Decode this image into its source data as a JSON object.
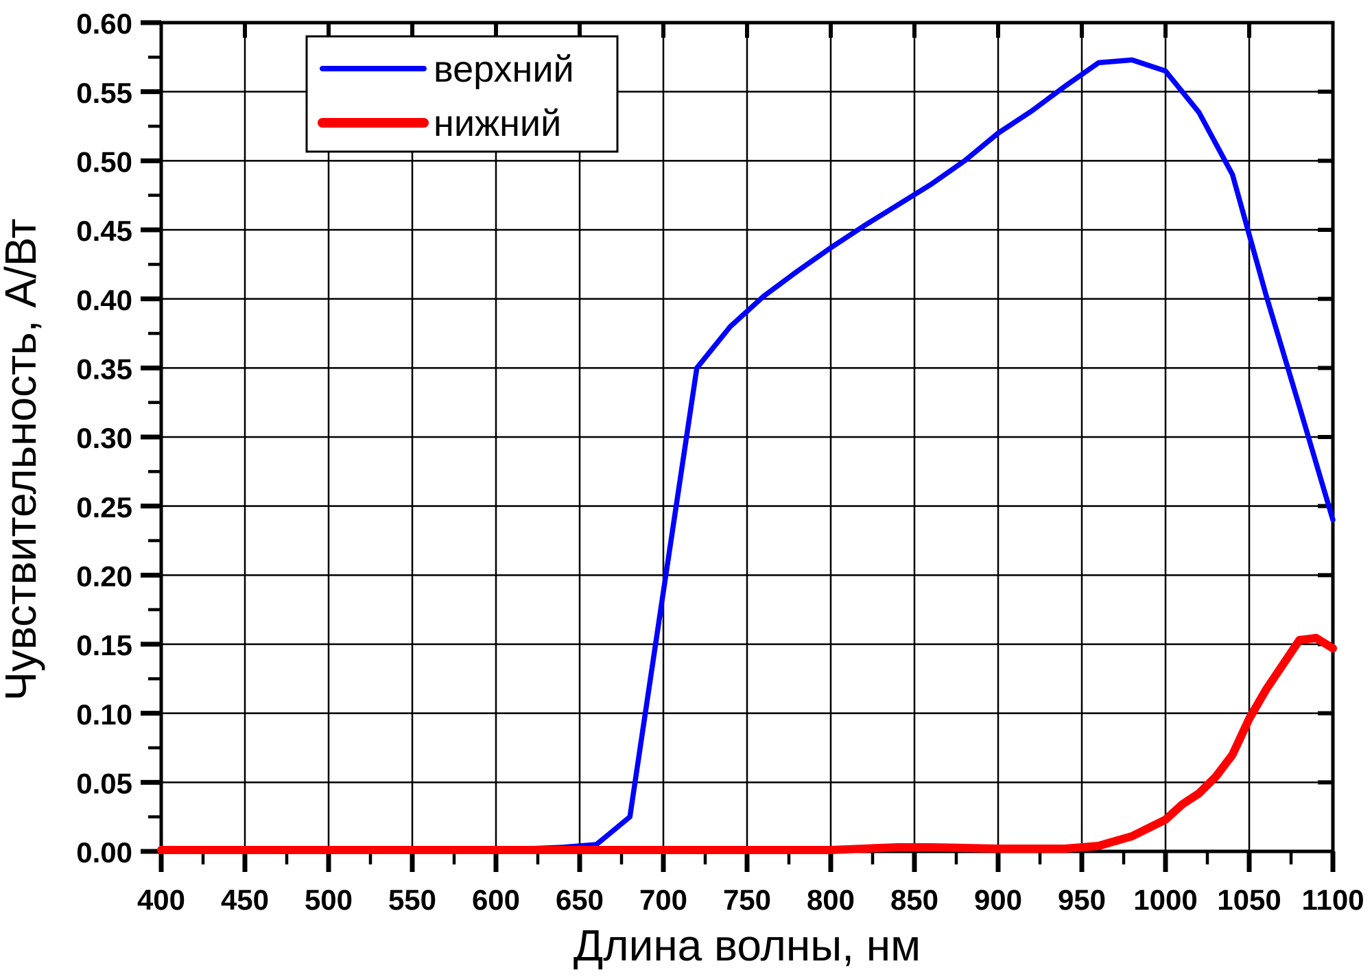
{
  "page": {
    "background": "#FFFFFF",
    "frame_color": "#000000",
    "grid_color": "#000000"
  },
  "chart_data": {
    "type": "line",
    "title": "",
    "xlabel": "Длина волны, нм",
    "ylabel": "Чувствительность, А/Вт",
    "xlim": [
      400,
      1100
    ],
    "ylim": [
      0.0,
      0.6
    ],
    "x_major_step": 50,
    "x_minor_step": 25,
    "y_major_step": 0.05,
    "y_minor_step": 0.025,
    "grid": true,
    "legend_position": "top-left-inside",
    "x_tick_labels": [
      "400",
      "450",
      "500",
      "550",
      "600",
      "650",
      "700",
      "750",
      "800",
      "850",
      "900",
      "950",
      "1000",
      "1050",
      "1100"
    ],
    "y_tick_labels": [
      "0.00",
      "0.05",
      "0.10",
      "0.15",
      "0.20",
      "0.25",
      "0.30",
      "0.35",
      "0.40",
      "0.45",
      "0.50",
      "0.55",
      "0.60"
    ],
    "series": [
      {
        "name": "верхний",
        "color": "#0000FF",
        "stroke_width": 7.5,
        "points": [
          [
            400,
            0.001
          ],
          [
            420,
            0.001
          ],
          [
            440,
            0.001
          ],
          [
            460,
            0.001
          ],
          [
            480,
            0.001
          ],
          [
            500,
            0.001
          ],
          [
            520,
            0.001
          ],
          [
            540,
            0.001
          ],
          [
            560,
            0.001
          ],
          [
            580,
            0.001
          ],
          [
            600,
            0.001
          ],
          [
            620,
            0.002
          ],
          [
            640,
            0.003
          ],
          [
            660,
            0.005
          ],
          [
            680,
            0.025
          ],
          [
            700,
            0.188
          ],
          [
            720,
            0.35
          ],
          [
            740,
            0.38
          ],
          [
            760,
            0.402
          ],
          [
            780,
            0.42
          ],
          [
            800,
            0.437
          ],
          [
            820,
            0.453
          ],
          [
            840,
            0.468
          ],
          [
            860,
            0.483
          ],
          [
            880,
            0.5
          ],
          [
            900,
            0.52
          ],
          [
            920,
            0.536
          ],
          [
            940,
            0.554
          ],
          [
            960,
            0.571
          ],
          [
            980,
            0.573
          ],
          [
            1000,
            0.565
          ],
          [
            1020,
            0.535
          ],
          [
            1040,
            0.49
          ],
          [
            1060,
            0.403
          ],
          [
            1080,
            0.322
          ],
          [
            1100,
            0.24
          ]
        ]
      },
      {
        "name": "нижний",
        "color": "#FF0000",
        "stroke_width": 12,
        "points": [
          [
            400,
            0.001
          ],
          [
            450,
            0.001
          ],
          [
            500,
            0.001
          ],
          [
            550,
            0.001
          ],
          [
            600,
            0.001
          ],
          [
            650,
            0.001
          ],
          [
            700,
            0.001
          ],
          [
            750,
            0.001
          ],
          [
            800,
            0.001
          ],
          [
            820,
            0.002
          ],
          [
            840,
            0.003
          ],
          [
            860,
            0.003
          ],
          [
            880,
            0.0025
          ],
          [
            900,
            0.002
          ],
          [
            920,
            0.002
          ],
          [
            940,
            0.002
          ],
          [
            960,
            0.004
          ],
          [
            980,
            0.011
          ],
          [
            1000,
            0.023
          ],
          [
            1010,
            0.034
          ],
          [
            1020,
            0.042
          ],
          [
            1030,
            0.054
          ],
          [
            1040,
            0.07
          ],
          [
            1050,
            0.096
          ],
          [
            1060,
            0.117
          ],
          [
            1070,
            0.135
          ],
          [
            1080,
            0.153
          ],
          [
            1090,
            0.1545
          ],
          [
            1100,
            0.147
          ]
        ]
      }
    ]
  }
}
